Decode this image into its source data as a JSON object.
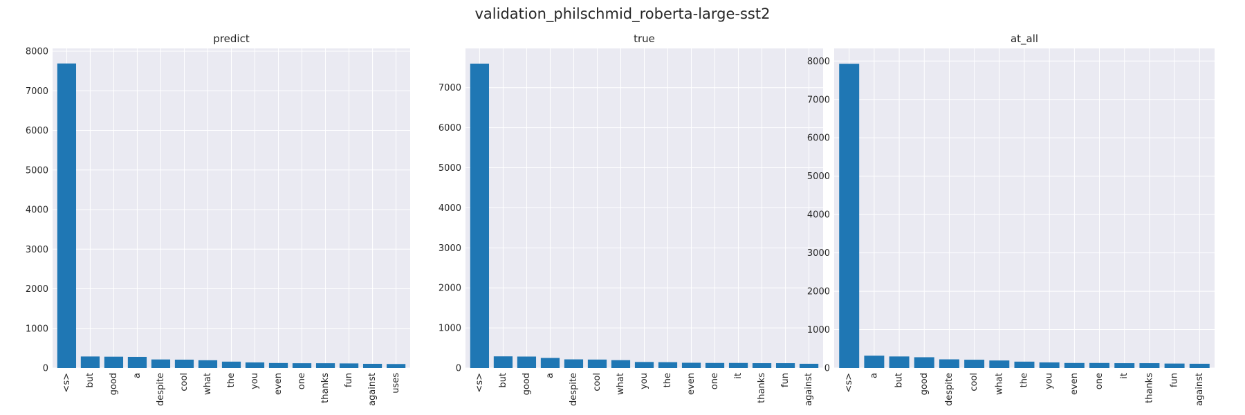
{
  "suptitle": "validation_philschmid_roberta-large-sst2",
  "chart_data": [
    {
      "type": "bar",
      "title": "predict",
      "categories": [
        "<s>",
        "but",
        "good",
        "a",
        "despite",
        "cool",
        "what",
        "the",
        "you",
        "even",
        "one",
        "thanks",
        "fun",
        "against",
        "uses"
      ],
      "values": [
        7690,
        290,
        285,
        280,
        215,
        210,
        195,
        160,
        140,
        125,
        120,
        120,
        115,
        105,
        100
      ],
      "yticks": [
        0,
        1000,
        2000,
        3000,
        4000,
        5000,
        6000,
        7000,
        8000
      ],
      "ylim": [
        0,
        8070
      ],
      "grid": true
    },
    {
      "type": "bar",
      "title": "true",
      "categories": [
        "<s>",
        "but",
        "good",
        "a",
        "despite",
        "cool",
        "what",
        "you",
        "the",
        "even",
        "one",
        "it",
        "thanks",
        "fun",
        "against"
      ],
      "values": [
        7600,
        290,
        285,
        250,
        215,
        210,
        195,
        150,
        145,
        130,
        125,
        125,
        120,
        120,
        105
      ],
      "yticks": [
        0,
        1000,
        2000,
        3000,
        4000,
        5000,
        6000,
        7000
      ],
      "ylim": [
        0,
        7980
      ],
      "grid": true
    },
    {
      "type": "bar",
      "title": "at_all",
      "categories": [
        "<s>",
        "a",
        "but",
        "good",
        "despite",
        "cool",
        "what",
        "the",
        "you",
        "even",
        "one",
        "it",
        "thanks",
        "fun",
        "against"
      ],
      "values": [
        7930,
        320,
        300,
        280,
        225,
        215,
        195,
        165,
        145,
        130,
        130,
        125,
        125,
        115,
        110
      ],
      "yticks": [
        0,
        1000,
        2000,
        3000,
        4000,
        5000,
        6000,
        7000,
        8000
      ],
      "ylim": [
        0,
        8330
      ],
      "grid": true
    }
  ]
}
